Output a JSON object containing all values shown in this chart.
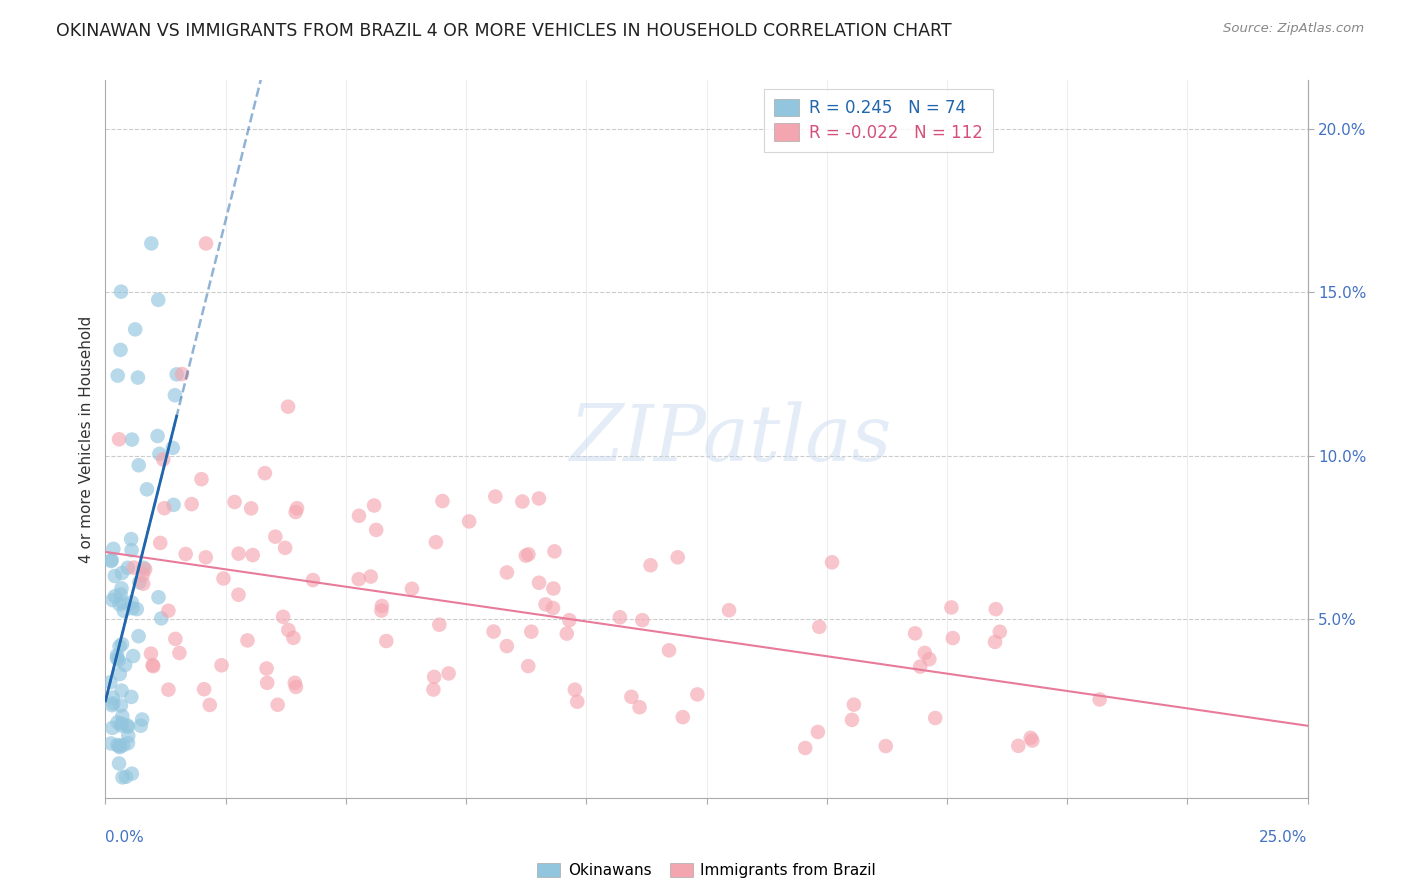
{
  "title": "OKINAWAN VS IMMIGRANTS FROM BRAZIL 4 OR MORE VEHICLES IN HOUSEHOLD CORRELATION CHART",
  "source": "Source: ZipAtlas.com",
  "ylabel": "4 or more Vehicles in Household",
  "ylabel_right_ticks": [
    "20.0%",
    "15.0%",
    "10.0%",
    "5.0%"
  ],
  "ylabel_right_vals": [
    0.2,
    0.15,
    0.1,
    0.05
  ],
  "xmin": 0.0,
  "xmax": 0.25,
  "ymin": -0.005,
  "ymax": 0.215,
  "legend_blue_r": "0.245",
  "legend_blue_n": "74",
  "legend_pink_r": "-0.022",
  "legend_pink_n": "112",
  "blue_color": "#92c5de",
  "pink_color": "#f4a6b0",
  "blue_line_color": "#2166ac",
  "pink_line_color": "#e87a9a",
  "watermark": "ZIPatlas",
  "background_color": "#ffffff"
}
